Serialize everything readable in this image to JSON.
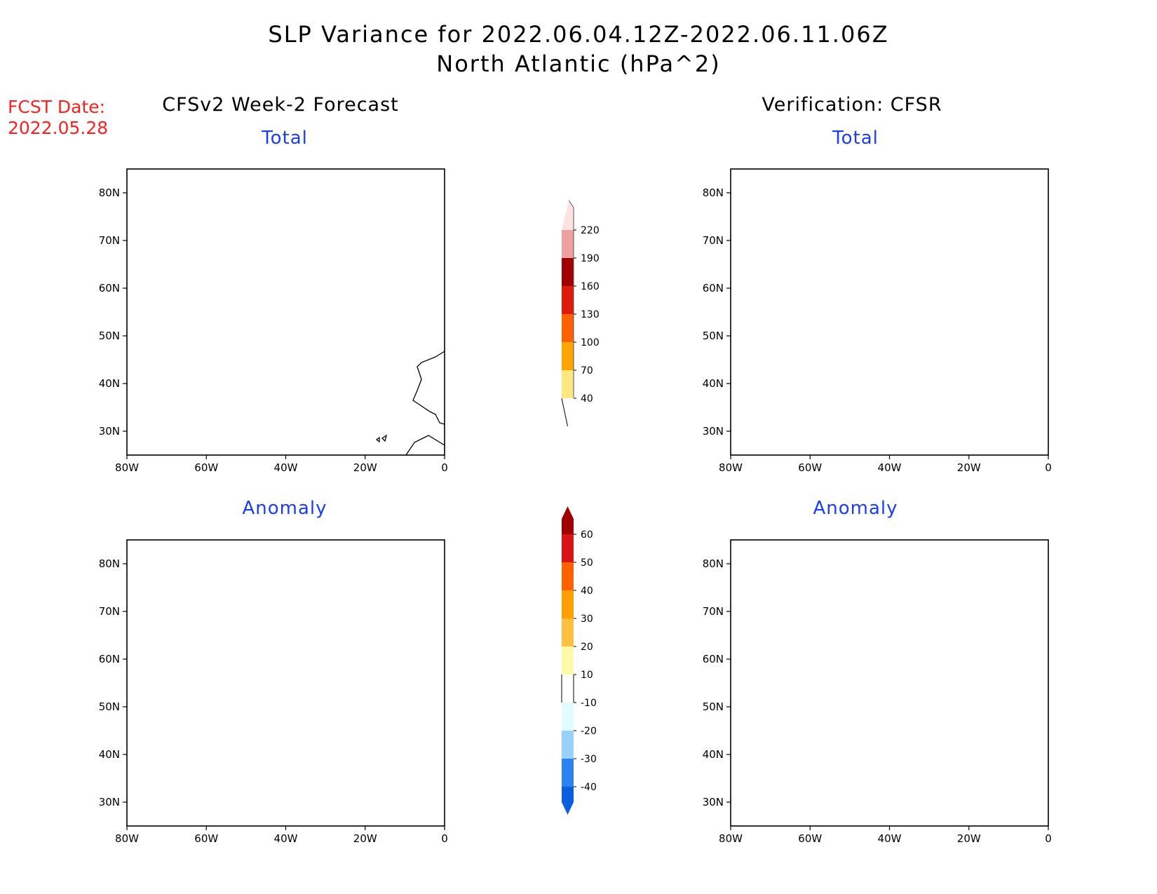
{
  "title_line1": "SLP Variance for 2022.06.04.12Z-2022.06.11.06Z",
  "title_line2": "North Atlantic (hPa^2)",
  "fcst_label": "FCST Date:",
  "fcst_date": "2022.05.28",
  "left_column_title": "CFSv2 Week-2 Forecast",
  "right_column_title": "Verification: CFSR",
  "panels": [
    {
      "title": "Total"
    },
    {
      "title": "Total"
    },
    {
      "title": "Anomaly"
    },
    {
      "title": "Anomaly"
    }
  ],
  "lat_labels": [
    "80N",
    "70N",
    "60N",
    "50N",
    "40N",
    "30N"
  ],
  "lon_labels": [
    "80W",
    "60W",
    "40W",
    "20W",
    "0"
  ],
  "total_colorbar": {
    "levels": [
      "40",
      "70",
      "100",
      "130",
      "160",
      "190",
      "220"
    ],
    "colors": [
      "#ffe680",
      "#ffa500",
      "#ff6000",
      "#e01a0a",
      "#a00000",
      "#f0a0a0",
      "#fde2e2"
    ]
  },
  "anomaly_colorbar": {
    "levels": [
      "-40",
      "-30",
      "-20",
      "-10",
      "10",
      "20",
      "30",
      "40",
      "50",
      "60"
    ],
    "colors": [
      "#0a5ee0",
      "#2c82f0",
      "#96d2fa",
      "#e0fcff",
      "#ffffff",
      "#fffaaa",
      "#ffc040",
      "#ffa000",
      "#ff6000",
      "#d81414",
      "#a00000"
    ]
  },
  "chart_data": {
    "type": "heatmap",
    "variable": "SLP Variance",
    "units": "hPa^2",
    "region": "North Atlantic",
    "lon_range": [
      -80,
      0
    ],
    "lat_range": [
      25,
      85
    ]
  }
}
